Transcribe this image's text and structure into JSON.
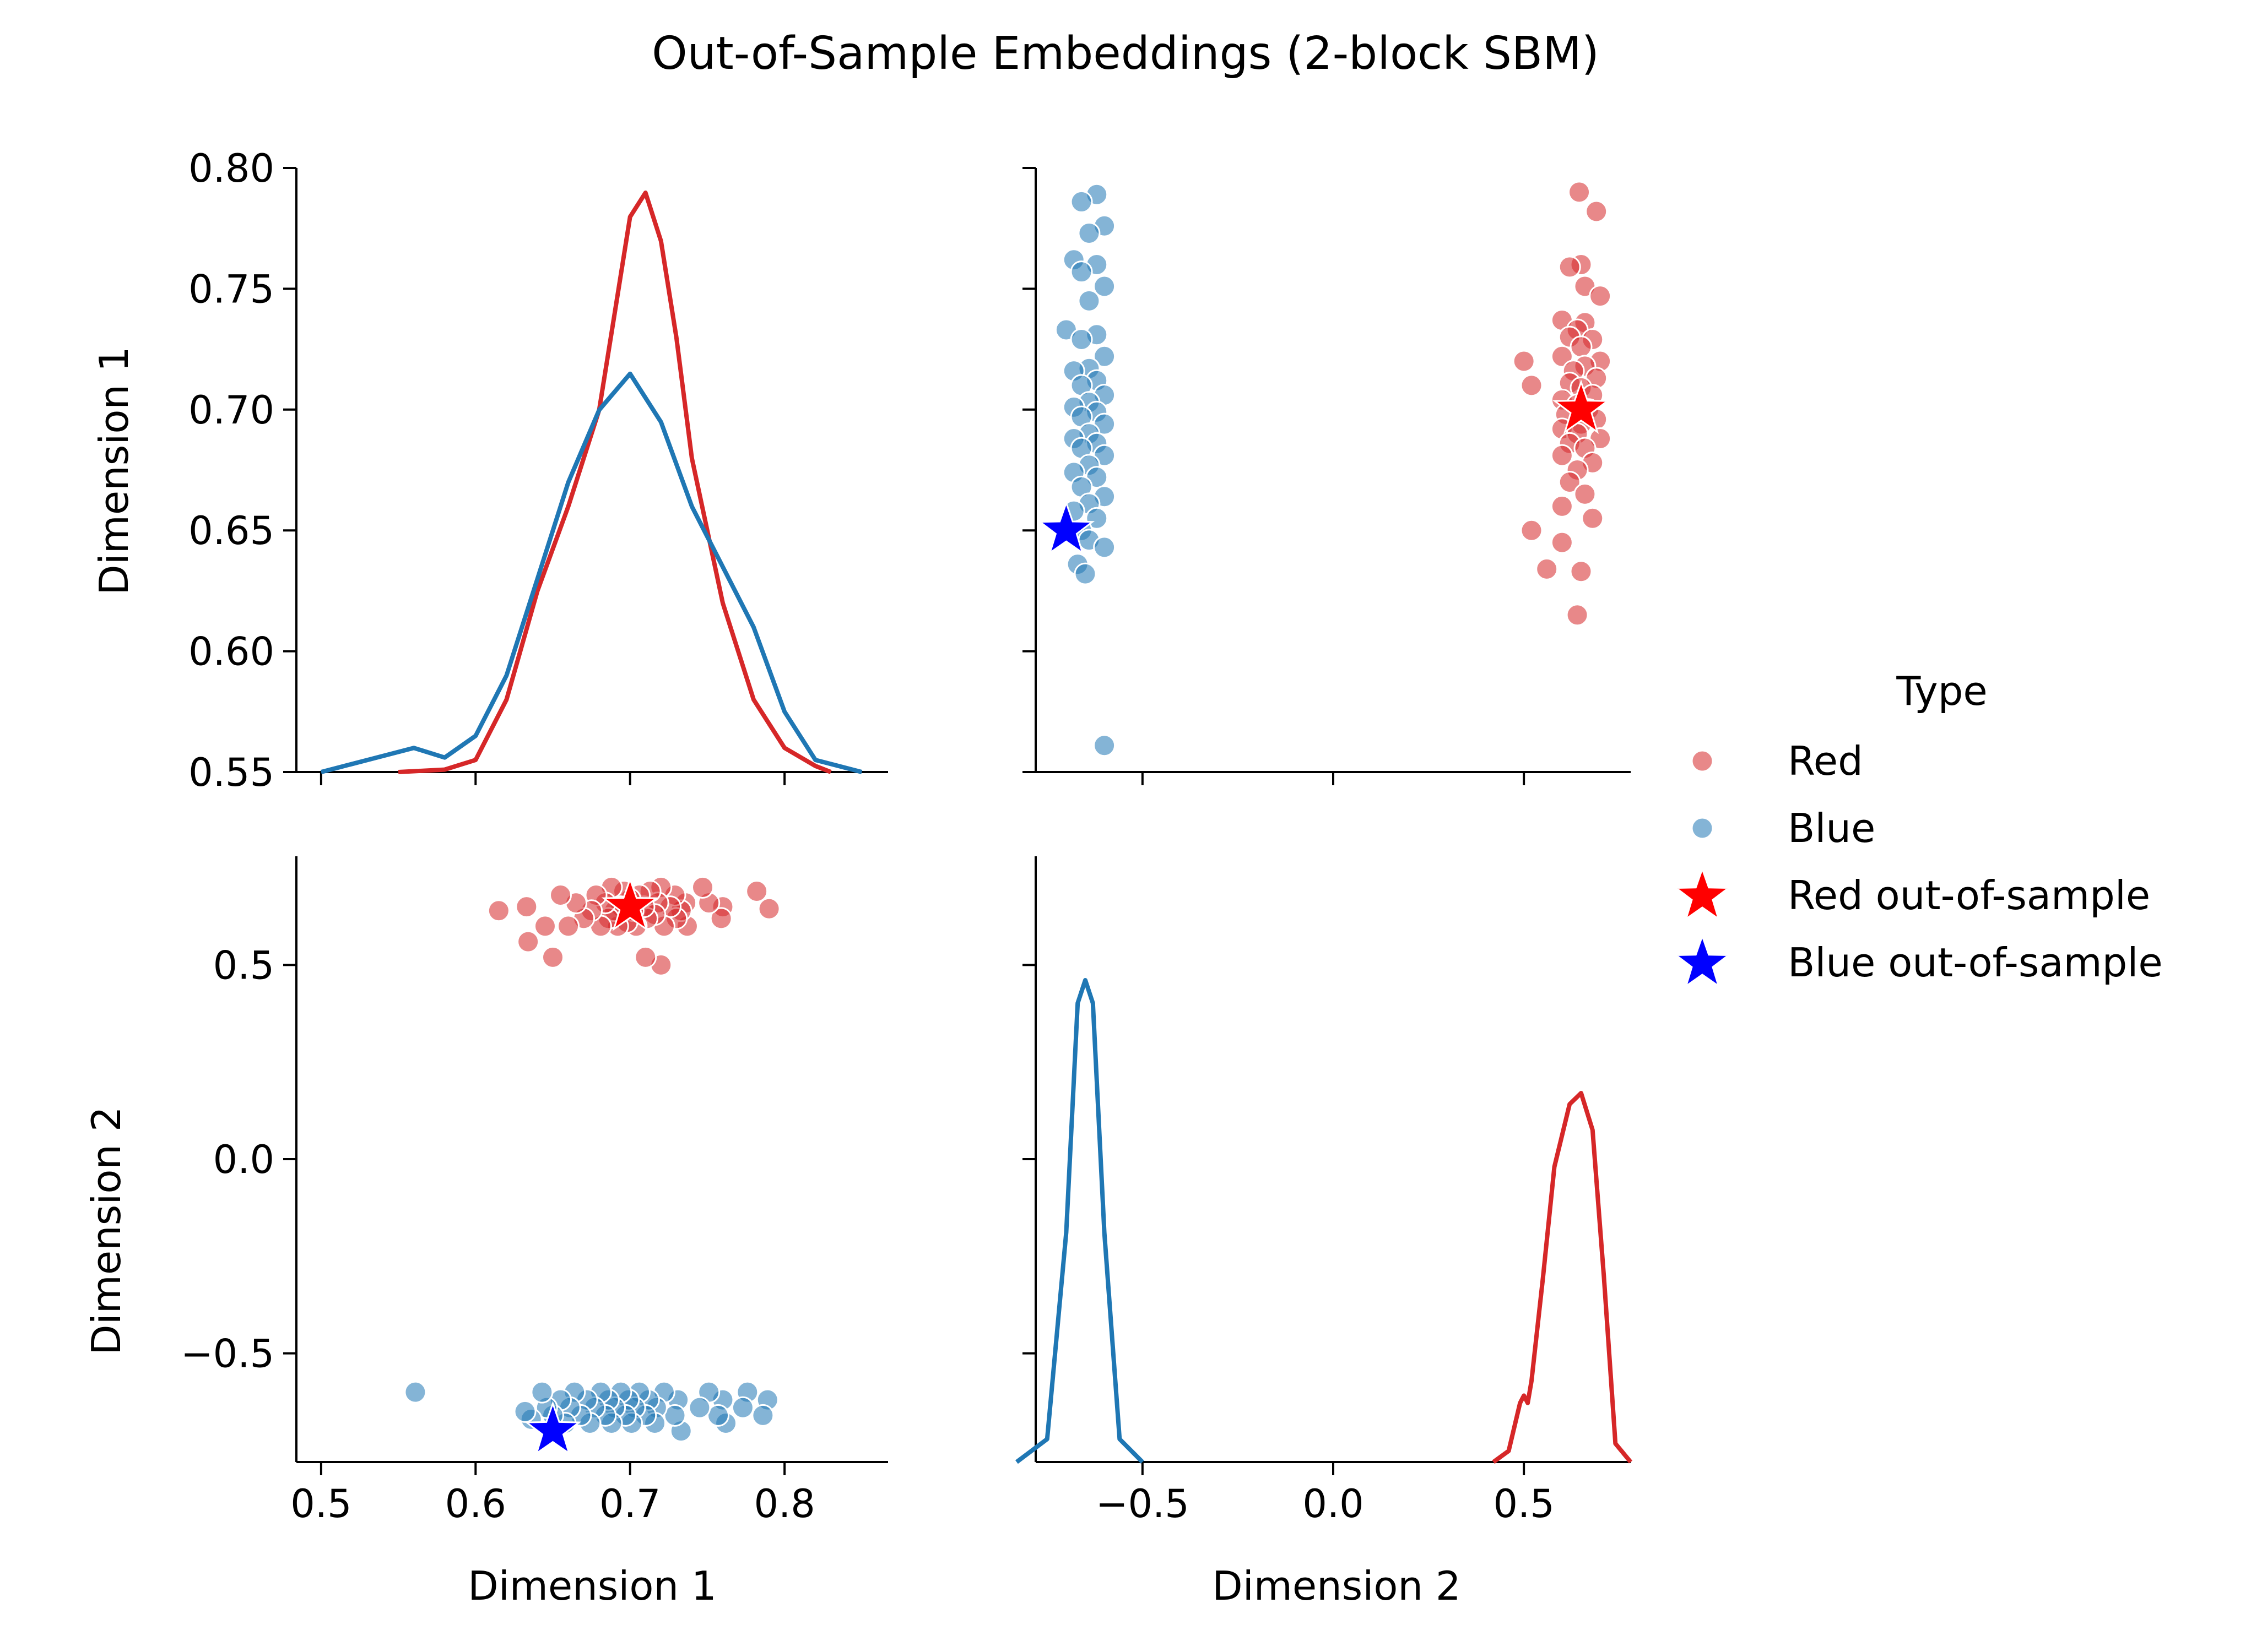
{
  "chart_data": {
    "type": "pairplot",
    "title": "Out-of-Sample Embeddings (2-block SBM)",
    "variables": [
      "Dimension 1",
      "Dimension 2"
    ],
    "dim1_ticks": [
      "0.5",
      "0.6",
      "0.7",
      "0.8"
    ],
    "dim1_left_ticks": [
      "0.80",
      "0.75",
      "0.70",
      "0.65",
      "0.60",
      "0.55"
    ],
    "dim2_ticks": [
      "−0.5",
      "0.0",
      "0.5"
    ],
    "dim1_range": [
      0.484,
      0.867
    ],
    "dim1_diag_range": [
      0.55,
      0.8
    ],
    "dim2_range": [
      -0.78,
      0.78
    ],
    "legend": {
      "title": "Type",
      "placement": "right",
      "entries": [
        {
          "label": "Red",
          "color": "#d62728",
          "marker": "circle"
        },
        {
          "label": "Blue",
          "color": "#1f77b4",
          "marker": "circle"
        },
        {
          "label": "Red out-of-sample",
          "color": "#ff0000",
          "marker": "star"
        },
        {
          "label": "Blue out-of-sample",
          "color": "#0000ff",
          "marker": "star"
        }
      ]
    },
    "colors": {
      "red": "#d62728",
      "blue": "#1f77b4",
      "red_star": "#ff0000",
      "blue_star": "#0000ff"
    },
    "series": [
      {
        "name": "Red",
        "points": [
          [
            0.79,
            0.645
          ],
          [
            0.782,
            0.69
          ],
          [
            0.76,
            0.65
          ],
          [
            0.759,
            0.62
          ],
          [
            0.751,
            0.66
          ],
          [
            0.747,
            0.7
          ],
          [
            0.737,
            0.6
          ],
          [
            0.736,
            0.66
          ],
          [
            0.733,
            0.64
          ],
          [
            0.73,
            0.62
          ],
          [
            0.729,
            0.68
          ],
          [
            0.726,
            0.65
          ],
          [
            0.722,
            0.6
          ],
          [
            0.72,
            0.7
          ],
          [
            0.718,
            0.66
          ],
          [
            0.716,
            0.63
          ],
          [
            0.713,
            0.69
          ],
          [
            0.711,
            0.62
          ],
          [
            0.709,
            0.65
          ],
          [
            0.706,
            0.68
          ],
          [
            0.704,
            0.6
          ],
          [
            0.702,
            0.64
          ],
          [
            0.7,
            0.67
          ],
          [
            0.698,
            0.61
          ],
          [
            0.696,
            0.69
          ],
          [
            0.694,
            0.65
          ],
          [
            0.692,
            0.6
          ],
          [
            0.69,
            0.64
          ],
          [
            0.688,
            0.7
          ],
          [
            0.686,
            0.62
          ],
          [
            0.684,
            0.66
          ],
          [
            0.681,
            0.6
          ],
          [
            0.678,
            0.68
          ],
          [
            0.675,
            0.64
          ],
          [
            0.67,
            0.62
          ],
          [
            0.665,
            0.66
          ],
          [
            0.66,
            0.6
          ],
          [
            0.655,
            0.68
          ],
          [
            0.65,
            0.52
          ],
          [
            0.645,
            0.6
          ],
          [
            0.634,
            0.56
          ],
          [
            0.633,
            0.65
          ],
          [
            0.615,
            0.64
          ],
          [
            0.72,
            0.5
          ],
          [
            0.71,
            0.52
          ]
        ]
      },
      {
        "name": "Blue",
        "points": [
          [
            0.789,
            -0.62
          ],
          [
            0.786,
            -0.66
          ],
          [
            0.776,
            -0.6
          ],
          [
            0.773,
            -0.64
          ],
          [
            0.762,
            -0.68
          ],
          [
            0.76,
            -0.62
          ],
          [
            0.757,
            -0.66
          ],
          [
            0.751,
            -0.6
          ],
          [
            0.745,
            -0.64
          ],
          [
            0.733,
            -0.7
          ],
          [
            0.731,
            -0.62
          ],
          [
            0.729,
            -0.66
          ],
          [
            0.722,
            -0.6
          ],
          [
            0.717,
            -0.64
          ],
          [
            0.716,
            -0.68
          ],
          [
            0.712,
            -0.62
          ],
          [
            0.71,
            -0.66
          ],
          [
            0.706,
            -0.6
          ],
          [
            0.703,
            -0.64
          ],
          [
            0.701,
            -0.68
          ],
          [
            0.699,
            -0.62
          ],
          [
            0.697,
            -0.66
          ],
          [
            0.694,
            -0.6
          ],
          [
            0.69,
            -0.64
          ],
          [
            0.688,
            -0.68
          ],
          [
            0.686,
            -0.62
          ],
          [
            0.684,
            -0.66
          ],
          [
            0.681,
            -0.6
          ],
          [
            0.677,
            -0.64
          ],
          [
            0.674,
            -0.68
          ],
          [
            0.672,
            -0.62
          ],
          [
            0.668,
            -0.66
          ],
          [
            0.664,
            -0.6
          ],
          [
            0.661,
            -0.64
          ],
          [
            0.658,
            -0.68
          ],
          [
            0.655,
            -0.62
          ],
          [
            0.65,
            -0.66
          ],
          [
            0.646,
            -0.64
          ],
          [
            0.643,
            -0.6
          ],
          [
            0.636,
            -0.67
          ],
          [
            0.632,
            -0.65
          ],
          [
            0.561,
            -0.6
          ]
        ]
      },
      {
        "name": "Red out-of-sample",
        "points": [
          [
            0.7,
            0.65
          ]
        ]
      },
      {
        "name": "Blue out-of-sample",
        "points": [
          [
            0.65,
            -0.7
          ]
        ]
      }
    ],
    "kde": {
      "dim1": {
        "Red": {
          "x": [
            0.55,
            0.58,
            0.6,
            0.62,
            0.64,
            0.66,
            0.68,
            0.69,
            0.7,
            0.71,
            0.72,
            0.73,
            0.74,
            0.76,
            0.78,
            0.8,
            0.82,
            0.83
          ],
          "y": [
            0.0,
            0.002,
            0.01,
            0.06,
            0.15,
            0.22,
            0.3,
            0.38,
            0.46,
            0.48,
            0.44,
            0.36,
            0.26,
            0.14,
            0.06,
            0.02,
            0.005,
            0.0
          ]
        },
        "Blue": {
          "x": [
            0.5,
            0.53,
            0.56,
            0.58,
            0.6,
            0.62,
            0.64,
            0.66,
            0.68,
            0.7,
            0.72,
            0.74,
            0.76,
            0.78,
            0.8,
            0.82,
            0.85
          ],
          "y": [
            0.0,
            0.01,
            0.02,
            0.012,
            0.03,
            0.08,
            0.16,
            0.24,
            0.3,
            0.33,
            0.29,
            0.22,
            0.17,
            0.12,
            0.05,
            0.01,
            0.0
          ]
        }
      },
      "dim2": {
        "Blue": {
          "x": [
            -0.83,
            -0.75,
            -0.7,
            -0.67,
            -0.65,
            -0.63,
            -0.6,
            -0.56,
            -0.5
          ],
          "y": [
            0.0,
            0.05,
            0.5,
            1.0,
            1.05,
            1.0,
            0.5,
            0.05,
            0.0
          ]
        },
        "Red": {
          "x": [
            0.42,
            0.46,
            0.49,
            0.5,
            0.51,
            0.52,
            0.55,
            0.58,
            0.62,
            0.65,
            0.68,
            0.71,
            0.74,
            0.78
          ],
          "y": [
            0.0,
            0.03,
            0.16,
            0.18,
            0.16,
            0.22,
            0.5,
            0.8,
            0.97,
            1.0,
            0.9,
            0.5,
            0.05,
            0.0
          ]
        }
      }
    }
  }
}
